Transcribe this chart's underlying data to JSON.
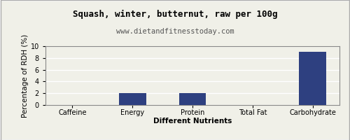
{
  "title": "Squash, winter, butternut, raw per 100g",
  "subtitle": "www.dietandfitnesstoday.com",
  "categories": [
    "Caffeine",
    "Energy",
    "Protein",
    "Total Fat",
    "Carbohydrate"
  ],
  "values": [
    0,
    2,
    2,
    0,
    9
  ],
  "bar_color": "#2e4080",
  "xlabel": "Different Nutrients",
  "ylabel": "Percentage of RDH (%)",
  "ylim": [
    0,
    10
  ],
  "yticks": [
    0,
    2,
    4,
    6,
    8,
    10
  ],
  "background_color": "#f0f0e8",
  "title_fontsize": 9,
  "subtitle_fontsize": 7.5,
  "axis_label_fontsize": 7.5,
  "tick_fontsize": 7,
  "bar_width": 0.45
}
